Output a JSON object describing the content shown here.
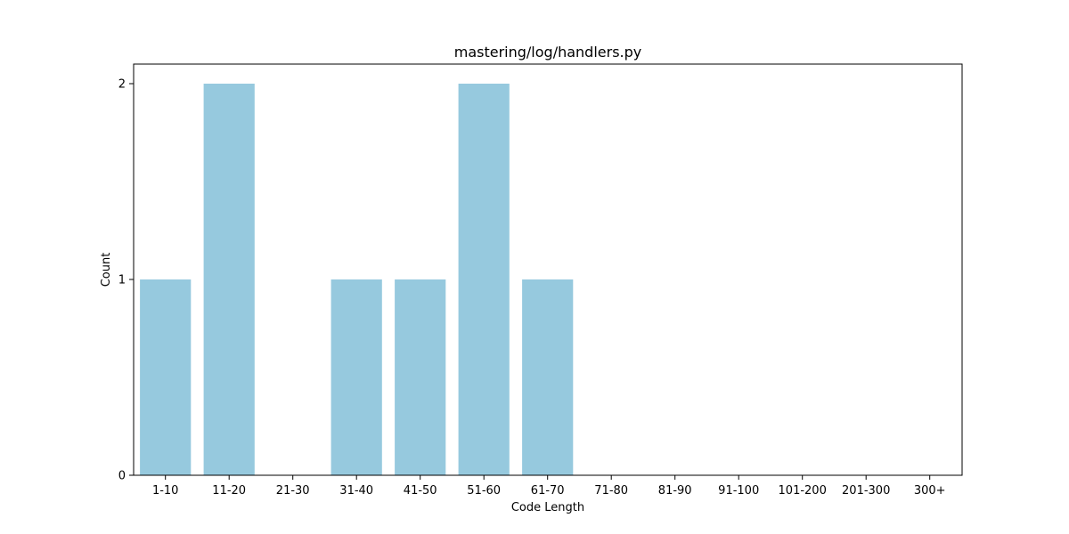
{
  "chart_data": {
    "type": "bar",
    "title": "mastering/log/handlers.py",
    "xlabel": "Code Length",
    "ylabel": "Count",
    "categories": [
      "1-10",
      "11-20",
      "21-30",
      "31-40",
      "41-50",
      "51-60",
      "61-70",
      "71-80",
      "81-90",
      "91-100",
      "101-200",
      "201-300",
      "300+"
    ],
    "values": [
      1,
      2,
      0,
      1,
      1,
      2,
      1,
      0,
      0,
      0,
      0,
      0,
      0
    ],
    "yticks": [
      "0",
      "1",
      "2"
    ],
    "ylim": [
      0,
      2.1
    ],
    "bar_color": "#96c9de",
    "grid": false,
    "legend": "none"
  }
}
